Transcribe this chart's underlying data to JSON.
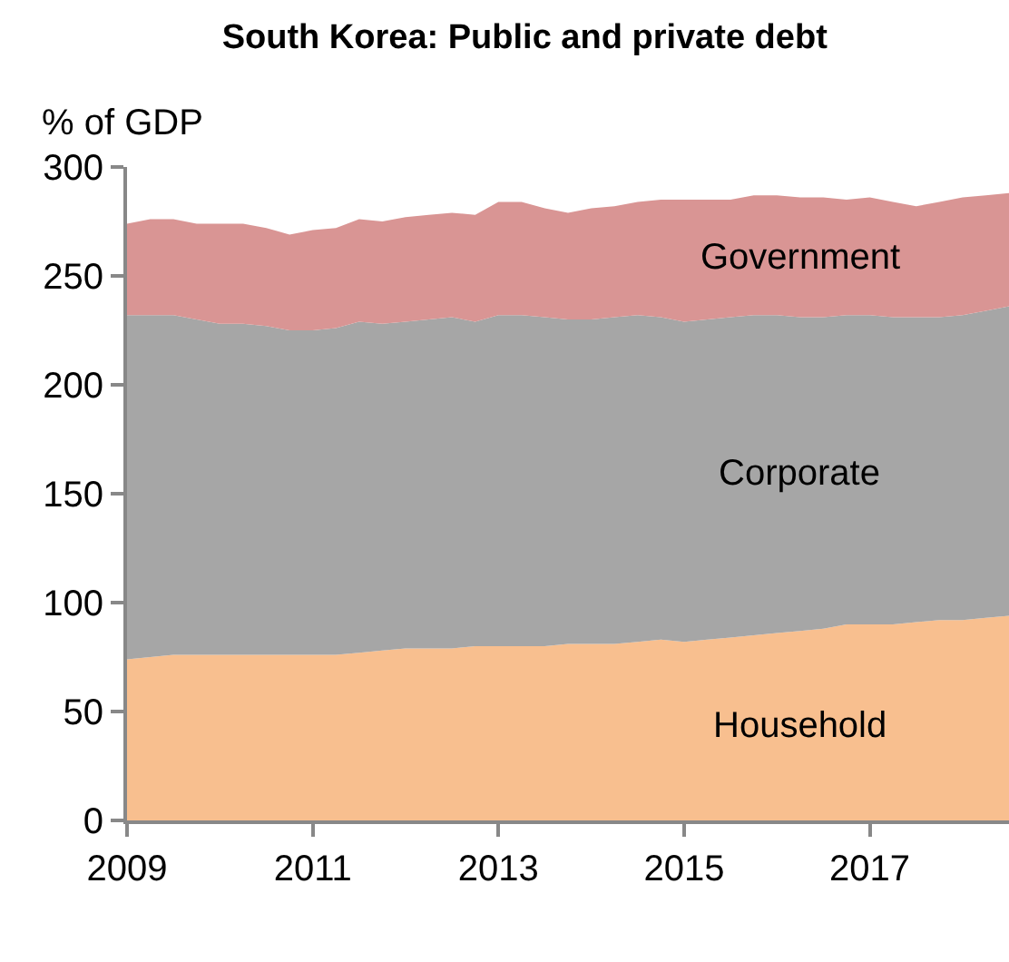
{
  "chart_data": {
    "type": "area",
    "stacked": true,
    "title": "South Korea: Public and private debt",
    "ylabel": "% of GDP",
    "x": [
      2009,
      2009.25,
      2009.5,
      2009.75,
      2010,
      2010.25,
      2010.5,
      2010.75,
      2011,
      2011.25,
      2011.5,
      2011.75,
      2012,
      2012.25,
      2012.5,
      2012.75,
      2013,
      2013.25,
      2013.5,
      2013.75,
      2014,
      2014.25,
      2014.5,
      2014.75,
      2015,
      2015.25,
      2015.5,
      2015.75,
      2016,
      2016.25,
      2016.5,
      2016.75,
      2017,
      2017.25,
      2017.5,
      2017.75,
      2018,
      2018.25,
      2018.5
    ],
    "series": [
      {
        "name": "Household",
        "color": "#f8bf8f",
        "values": [
          74,
          75,
          76,
          76,
          76,
          76,
          76,
          76,
          76,
          76,
          77,
          78,
          79,
          79,
          79,
          80,
          80,
          80,
          80,
          81,
          81,
          81,
          82,
          83,
          82,
          83,
          84,
          85,
          86,
          87,
          88,
          90,
          90,
          90,
          91,
          92,
          92,
          93,
          94
        ]
      },
      {
        "name": "Corporate",
        "color": "#a6a6a6",
        "values": [
          158,
          157,
          156,
          154,
          152,
          152,
          151,
          149,
          149,
          150,
          152,
          150,
          150,
          151,
          152,
          149,
          152,
          152,
          151,
          149,
          149,
          150,
          150,
          148,
          147,
          147,
          147,
          147,
          146,
          144,
          143,
          142,
          142,
          141,
          140,
          139,
          140,
          141,
          142
        ]
      },
      {
        "name": "Government",
        "color": "#d99594",
        "values": [
          42,
          44,
          44,
          44,
          46,
          46,
          45,
          44,
          46,
          46,
          47,
          47,
          48,
          48,
          48,
          49,
          52,
          52,
          50,
          49,
          51,
          51,
          52,
          54,
          56,
          55,
          54,
          55,
          55,
          55,
          55,
          53,
          54,
          53,
          51,
          53,
          54,
          53,
          52
        ]
      }
    ],
    "xlim": [
      2009,
      2018.5
    ],
    "xticks": [
      2009,
      2011,
      2013,
      2015,
      2017
    ],
    "ylim": [
      0,
      300
    ],
    "yticks": [
      0,
      50,
      100,
      150,
      200,
      250,
      300
    ],
    "grid": false,
    "legend": false
  }
}
